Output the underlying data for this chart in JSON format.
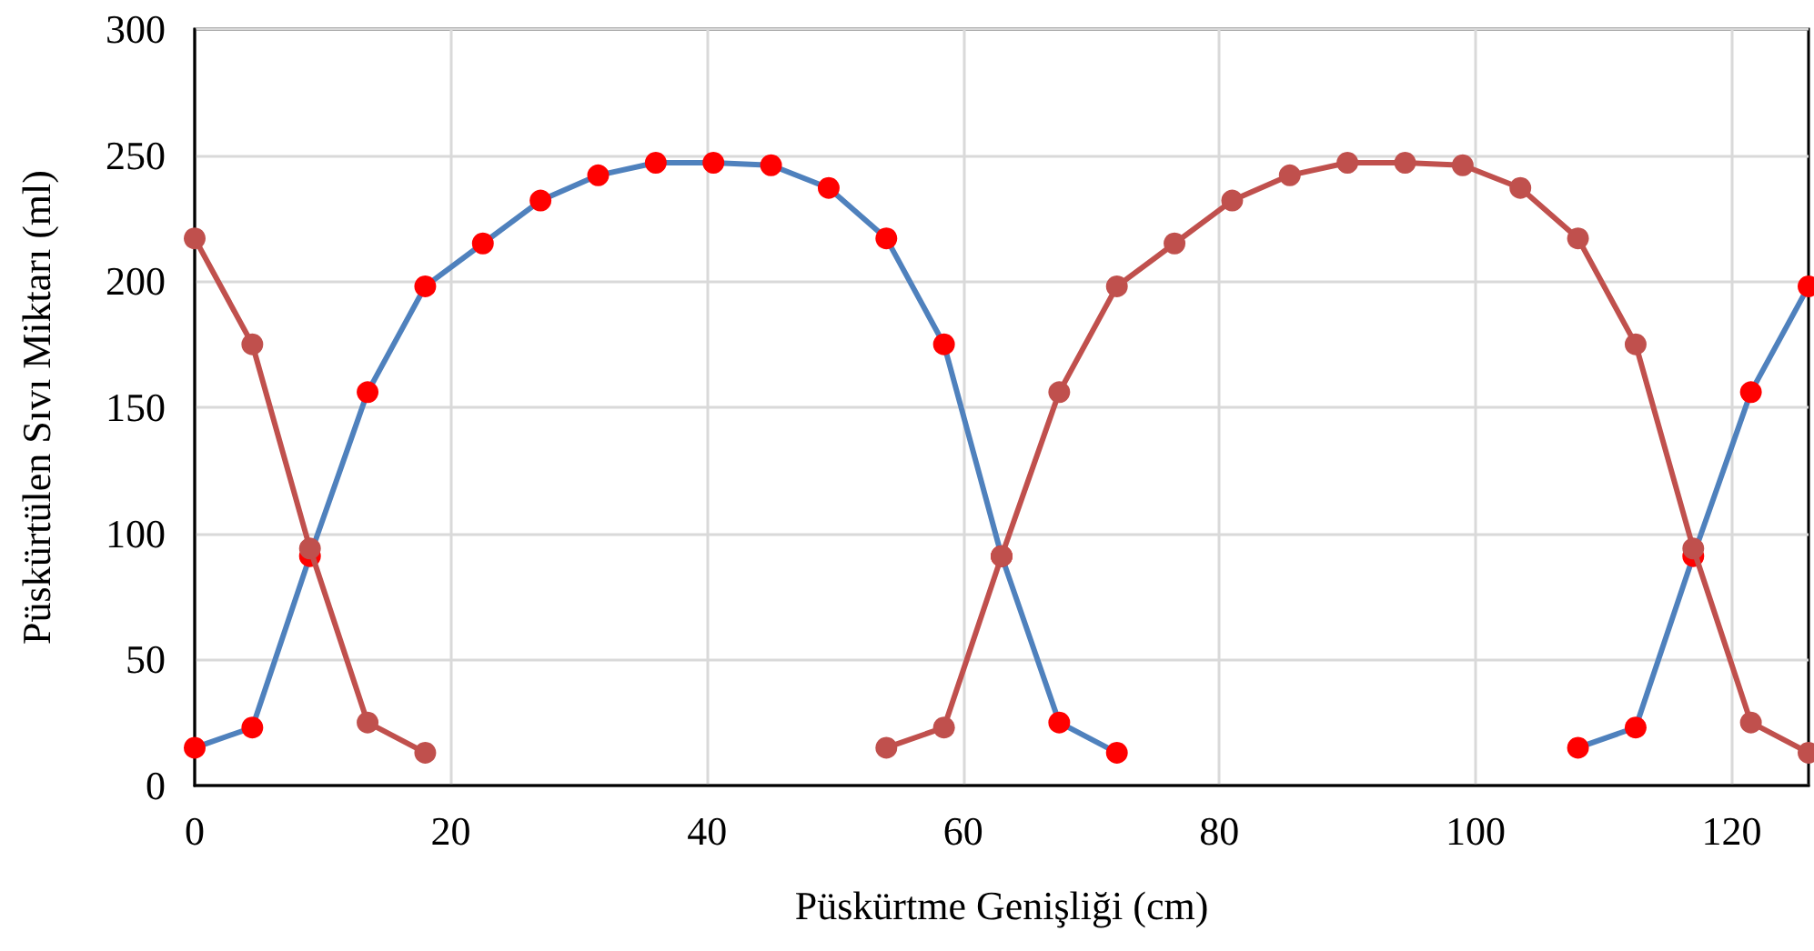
{
  "chart_data": {
    "type": "line",
    "xlabel": "Püskürtme Genişliği (cm)",
    "ylabel": "Püskürtülen Sıvı Miktarı (ml)",
    "x": [
      0,
      4.5,
      9,
      13.5,
      18,
      22.5,
      27,
      31.5,
      36,
      40.5,
      45,
      49.5,
      54,
      58.5,
      63,
      67.5,
      72,
      76.5,
      81,
      85.5,
      90,
      94.5,
      99,
      103.5,
      108,
      112.5,
      117,
      121.5,
      126
    ],
    "series": [
      {
        "color": "#4f81bd",
        "colors": [
          "#ff0000",
          "#ff0000",
          "#ff0000",
          "#ff0000",
          "#ff0000",
          "#ff0000",
          "#ff0000",
          "#ff0000",
          "#ff0000",
          "#ff0000",
          "#ff0000",
          "#ff0000",
          "#ff0000",
          "#ff0000",
          "#ff0000",
          "#ff0000",
          "#ff0000",
          "#ff0000",
          "#ff0000",
          "#ff0000",
          "#ff0000",
          "#ff0000",
          "#ff0000",
          "#ff0000",
          "#ff0000",
          "#ff0000",
          "#ff0000",
          "#ff0000",
          "#ff0000"
        ],
        "values": [
          15,
          23,
          91,
          156,
          198,
          215,
          232,
          242,
          247,
          247,
          246,
          237,
          217,
          175,
          91,
          25,
          13,
          null,
          null,
          null,
          null,
          null,
          null,
          null,
          15,
          23,
          91,
          156,
          198
        ]
      },
      {
        "color": "#c0504d",
        "colors": [
          "#c0504d",
          "#c0504d",
          "#c0504d",
          "#c0504d",
          "#c0504d",
          "#c0504d",
          "#c0504d",
          "#c0504d",
          "#c0504d",
          "#c0504d",
          "#c0504d",
          "#c0504d",
          "#c0504d",
          "#c0504d",
          "#c0504d",
          "#c0504d",
          "#c0504d",
          "#c0504d",
          "#c0504d",
          "#c0504d",
          "#c0504d",
          "#c0504d",
          "#c0504d",
          "#c0504d",
          "#c0504d",
          "#c0504d",
          "#c0504d",
          "#c0504d",
          "#c0504d"
        ],
        "values": [
          217,
          175,
          94,
          25,
          13,
          null,
          null,
          null,
          null,
          null,
          null,
          null,
          15,
          23,
          91,
          156,
          198,
          215,
          232,
          242,
          247,
          247,
          246,
          237,
          217,
          175,
          94,
          25,
          13
        ]
      }
    ],
    "xlim": [
      0,
      126
    ],
    "xticks": [
      0,
      20,
      40,
      60,
      80,
      100,
      120
    ],
    "ylim": [
      0,
      300
    ],
    "yticks": [
      0,
      50,
      100,
      150,
      200,
      250,
      300
    ],
    "grid": true,
    "marker": "circle",
    "line_style": "solid"
  }
}
